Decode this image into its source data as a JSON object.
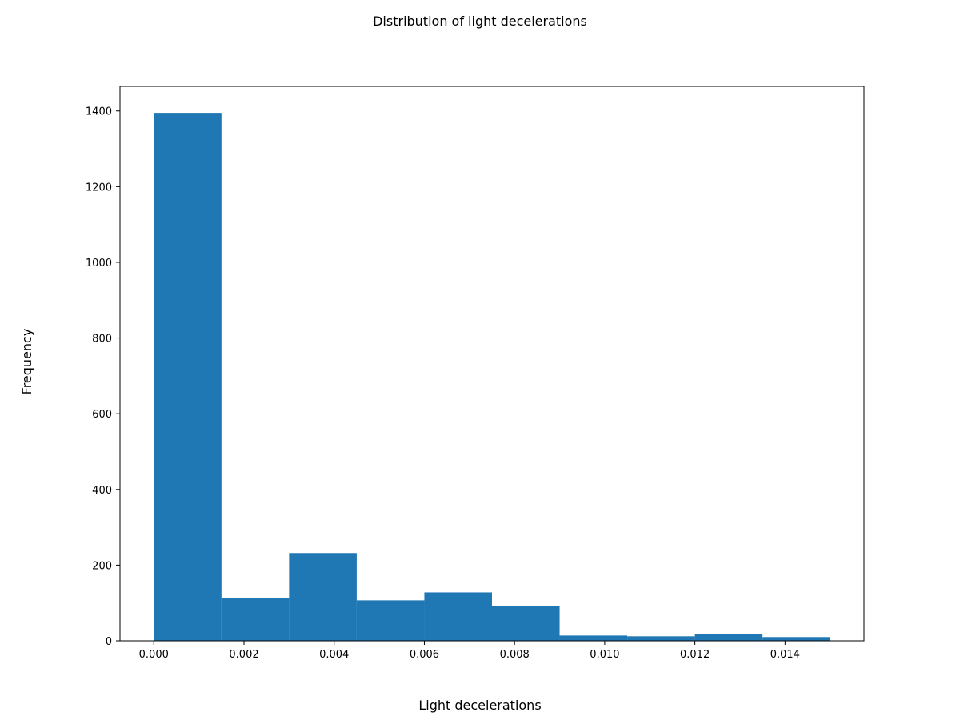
{
  "chart_data": {
    "type": "bar",
    "title": "Distribution of light decelerations",
    "xlabel": "Light decelerations",
    "ylabel": "Frequency",
    "bin_edges": [
      0.0,
      0.0015,
      0.003,
      0.0045,
      0.006,
      0.0075,
      0.009,
      0.0105,
      0.012,
      0.0135,
      0.015
    ],
    "values": [
      1395,
      114,
      232,
      107,
      128,
      92,
      14,
      12,
      18,
      10
    ],
    "xlim": [
      -0.00075,
      0.01575
    ],
    "ylim": [
      0,
      1465
    ],
    "x_ticks": [
      0.0,
      0.002,
      0.004,
      0.006,
      0.008,
      0.01,
      0.012,
      0.014
    ],
    "x_tick_labels": [
      "0.000",
      "0.002",
      "0.004",
      "0.006",
      "0.008",
      "0.010",
      "0.012",
      "0.014"
    ],
    "y_ticks": [
      0,
      200,
      400,
      600,
      800,
      1000,
      1200,
      1400
    ],
    "y_tick_labels": [
      "0",
      "200",
      "400",
      "600",
      "800",
      "1000",
      "1200",
      "1400"
    ],
    "grid": false,
    "bar_color": "#1f77b4"
  }
}
